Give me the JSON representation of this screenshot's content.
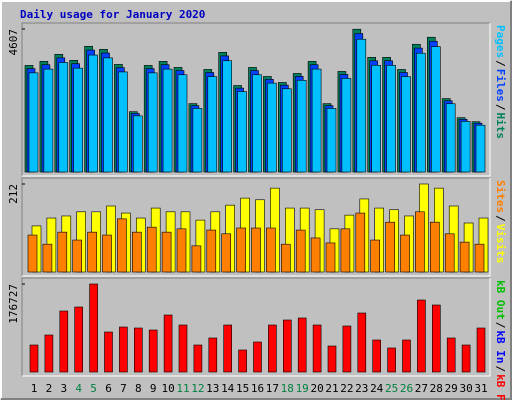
{
  "chart_data": [
    {
      "type": "bar",
      "title": "Daily usage for January 2020",
      "legend_separator": "/",
      "ylim": [
        0,
        4607
      ],
      "yticks": [
        4607
      ],
      "series": [
        {
          "name": "Hits",
          "color": "#00805c",
          "values": [
            3434,
            3564,
            3791,
            3597,
            4050,
            3953,
            3467,
            1944,
            3434,
            3564,
            3369,
            2203,
            3304,
            3856,
            2786,
            3369,
            3078,
            2884,
            3175,
            3564,
            2203,
            3240,
            4600,
            3694,
            3694,
            3304,
            4115,
            4342,
            2365,
            1750,
            1620
          ]
        },
        {
          "name": "Files",
          "color": "#0040ff",
          "values": [
            3331,
            3457,
            3677,
            3489,
            3929,
            3834,
            3363,
            1886,
            3331,
            3457,
            3268,
            2137,
            3205,
            3740,
            2702,
            3268,
            2986,
            2797,
            3080,
            3457,
            2137,
            3143,
            4462,
            3583,
            3583,
            3205,
            3992,
            4212,
            2294,
            1698,
            1571
          ]
        },
        {
          "name": "Pages",
          "color": "#00c0ff",
          "values": [
            3194,
            3315,
            3526,
            3345,
            3767,
            3676,
            3224,
            1808,
            3194,
            3315,
            3133,
            2049,
            3073,
            3586,
            2591,
            3133,
            2863,
            2682,
            2953,
            3315,
            2049,
            3013,
            4278,
            3435,
            3435,
            3073,
            3827,
            4038,
            2199,
            1628,
            1507
          ]
        }
      ]
    },
    {
      "type": "bar",
      "ylim": [
        0,
        212
      ],
      "yticks": [
        212
      ],
      "series": [
        {
          "name": "Visits",
          "color": "#ffff00",
          "values": [
            111,
            130,
            135,
            145,
            145,
            159,
            142,
            130,
            154,
            145,
            145,
            125,
            145,
            161,
            178,
            174,
            202,
            154,
            154,
            150,
            104,
            137,
            176,
            154,
            150,
            135,
            212,
            202,
            159,
            118,
            130
          ]
        },
        {
          "name": "Sites",
          "color": "#ff8000",
          "values": [
            89,
            67,
            96,
            77,
            96,
            89,
            128,
            96,
            108,
            96,
            104,
            63,
            101,
            92,
            106,
            106,
            106,
            67,
            101,
            82,
            70,
            104,
            142,
            77,
            120,
            89,
            145,
            120,
            92,
            72,
            67
          ]
        }
      ]
    },
    {
      "type": "bar",
      "ylim": [
        0,
        176727
      ],
      "yticks": [
        176727
      ],
      "series": [
        {
          "name": "kB F",
          "color": "#ff0000",
          "values": [
            54216,
            74296,
            122488,
            130520,
            176727,
            80320,
            90360,
            88352,
            84336,
            114456,
            94376,
            54216,
            68272,
            94376,
            44176,
            60240,
            94376,
            104416,
            108432,
            94376,
            52208,
            92368,
            118472,
            64256,
            48192,
            64256,
            144576,
            134536,
            68272,
            54216,
            88352
          ]
        }
      ],
      "legend_only": [
        {
          "name": "kB In",
          "color": "#0000ff"
        },
        {
          "name": "kB Out",
          "color": "#00c000"
        }
      ],
      "categories": [
        "1",
        "2",
        "3",
        "4",
        "5",
        "6",
        "7",
        "8",
        "9",
        "10",
        "11",
        "12",
        "13",
        "14",
        "15",
        "16",
        "17",
        "18",
        "19",
        "20",
        "21",
        "22",
        "23",
        "24",
        "25",
        "26",
        "27",
        "28",
        "29",
        "30",
        "31"
      ],
      "label_colors": [
        "#000",
        "#000",
        "#000",
        "#008040",
        "#008040",
        "#000",
        "#000",
        "#000",
        "#000",
        "#000",
        "#008040",
        "#008040",
        "#000",
        "#000",
        "#000",
        "#000",
        "#000",
        "#008040",
        "#008040",
        "#000",
        "#000",
        "#000",
        "#000",
        "#000",
        "#008040",
        "#008040",
        "#000",
        "#000",
        "#000",
        "#000",
        "#000"
      ]
    }
  ]
}
